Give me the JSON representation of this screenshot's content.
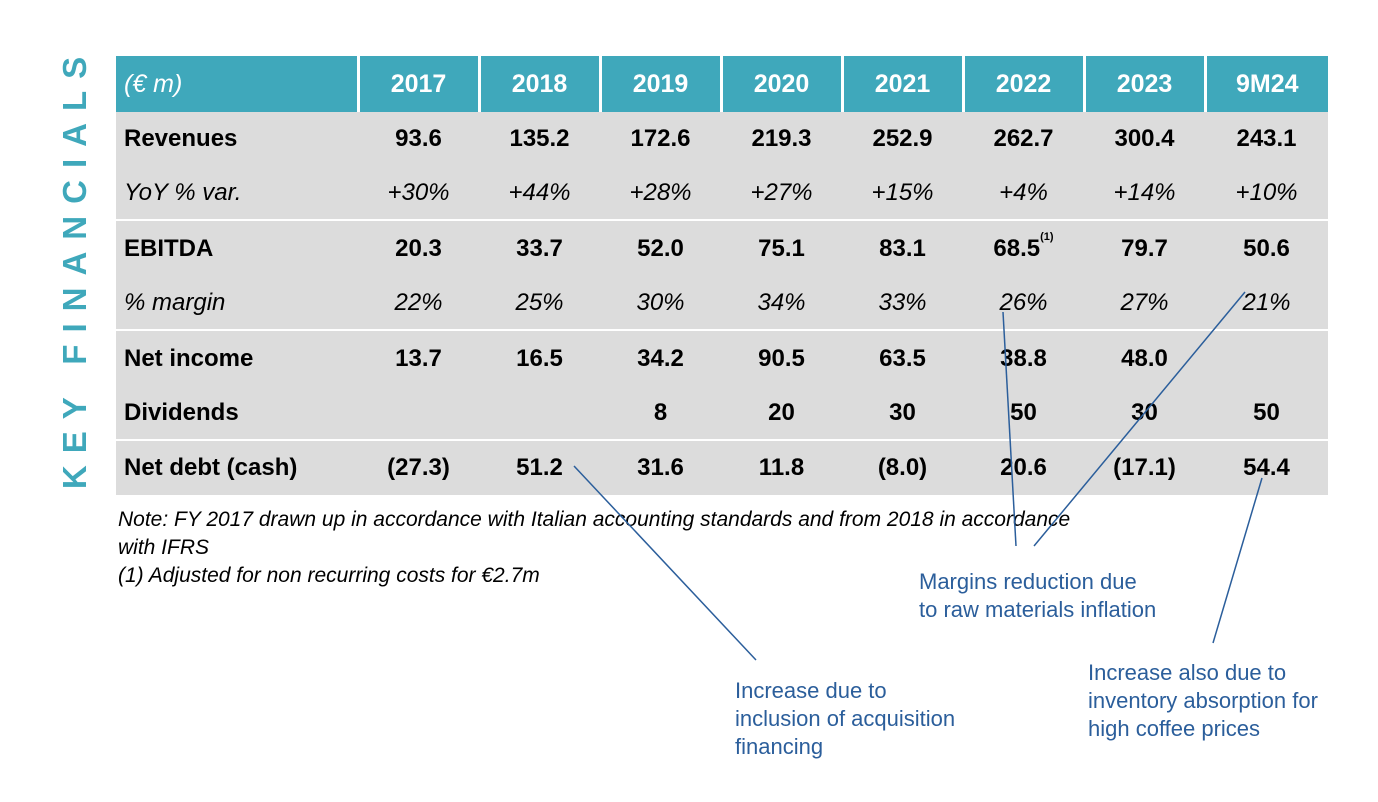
{
  "side_title": "KEY FINANCIALS",
  "table": {
    "unit_label": "(€ m)",
    "years": [
      "2017",
      "2018",
      "2019",
      "2020",
      "2021",
      "2022",
      "2023",
      "9M24"
    ],
    "rows": [
      {
        "label": "Revenues",
        "values": [
          "93.6",
          "135.2",
          "172.6",
          "219.3",
          "252.9",
          "262.7",
          "300.4",
          "243.1"
        ]
      },
      {
        "label": "YoY % var.",
        "values": [
          "+30%",
          "+44%",
          "+28%",
          "+27%",
          "+15%",
          "+4%",
          "+14%",
          "+10%"
        ]
      },
      {
        "label": "EBITDA",
        "values": [
          "20.3",
          "33.7",
          "52.0",
          "75.1",
          "83.1",
          "68.5",
          "79.7",
          "50.6"
        ]
      },
      {
        "label": "% margin",
        "values": [
          "22%",
          "25%",
          "30%",
          "34%",
          "33%",
          "26%",
          "27%",
          "21%"
        ]
      },
      {
        "label": "Net income",
        "values": [
          "13.7",
          "16.5",
          "34.2",
          "90.5",
          "63.5",
          "38.8",
          "48.0",
          ""
        ]
      },
      {
        "label": "Dividends",
        "values": [
          "",
          "",
          "8",
          "20",
          "30",
          "50",
          "30",
          "50"
        ]
      },
      {
        "label": "Net debt (cash)",
        "values": [
          "(27.3)",
          "51.2",
          "31.6",
          "11.8",
          "(8.0)",
          "20.6",
          "(17.1)",
          "54.4"
        ]
      }
    ],
    "ebitda_2022_footnote": "(1)"
  },
  "note": {
    "line1": "Note: FY 2017 drawn up in accordance with Italian accounting standards and from 2018 in accordance",
    "line2": "with IFRS",
    "line3": "(1) Adjusted for non recurring costs for €2.7m"
  },
  "annotations": {
    "margins": {
      "line1": "Margins reduction due",
      "line2": "to raw materials inflation"
    },
    "acquisition": {
      "line1": "Increase due to",
      "line2": "inclusion of acquisition",
      "line3": "financing"
    },
    "coffee": {
      "line1": "Increase also due to",
      "line2": "inventory absorption for",
      "line3": "high coffee prices"
    }
  },
  "colors": {
    "header": "#3fa8bb",
    "body": "#dcdcdc",
    "annotation": "#2b5e9b"
  }
}
